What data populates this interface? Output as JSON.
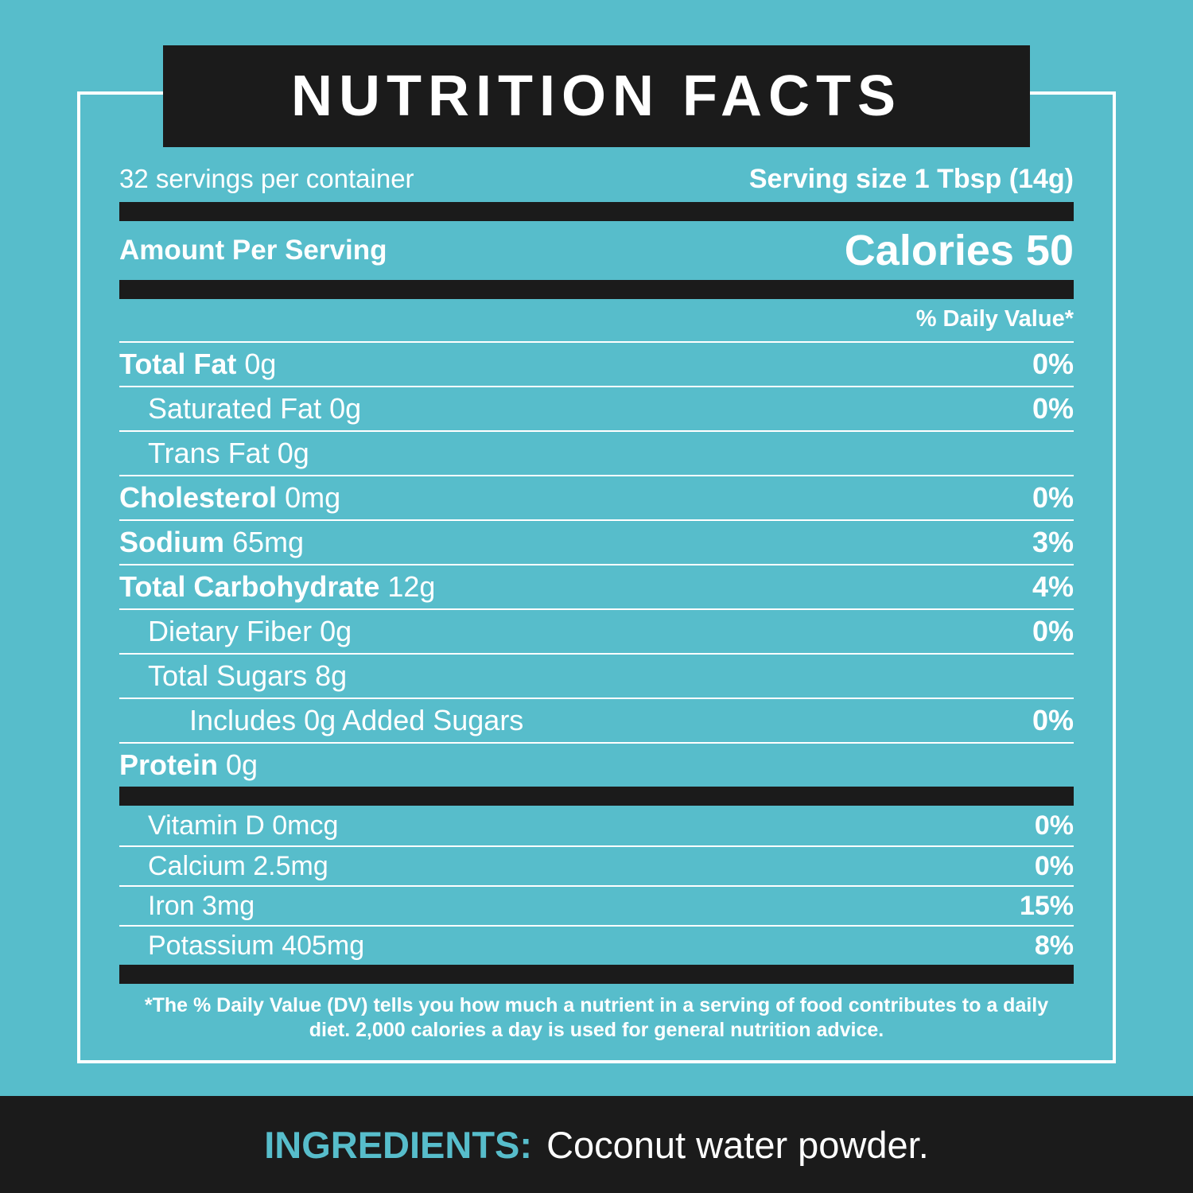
{
  "colors": {
    "background": "#57BDCB",
    "bar_black": "#1B1B1B",
    "text_white": "#FFFFFF",
    "accent_teal": "#57BDCB"
  },
  "label": {
    "title": "NUTRITION FACTS",
    "servings_per_container": "32 servings per container",
    "serving_size_label": "Serving size",
    "serving_size_value": "1 Tbsp (14g)",
    "amount_per_serving": "Amount Per Serving",
    "calories_label": "Calories",
    "calories_value": "50",
    "daily_value_header": "% Daily Value*",
    "rows": [
      {
        "name": "Total Fat",
        "amount": "0g",
        "dv": "0%"
      },
      {
        "name": "Saturated Fat",
        "amount": "0g",
        "dv": "0%"
      },
      {
        "name": "Trans Fat",
        "amount": "0g",
        "dv": ""
      },
      {
        "name": "Cholesterol",
        "amount": "0mg",
        "dv": "0%"
      },
      {
        "name": "Sodium",
        "amount": "65mg",
        "dv": "3%"
      },
      {
        "name": "Total Carbohydrate",
        "amount": "12g",
        "dv": "4%"
      },
      {
        "name": "Dietary Fiber",
        "amount": "0g",
        "dv": "0%"
      },
      {
        "name": "Total Sugars",
        "amount": "8g",
        "dv": ""
      },
      {
        "name": "Includes 0g Added Sugars",
        "amount": "",
        "dv": "0%"
      },
      {
        "name": "Protein",
        "amount": "0g",
        "dv": ""
      }
    ],
    "micronutrients": [
      {
        "name": "Vitamin D",
        "amount": "0mcg",
        "dv": "0%"
      },
      {
        "name": "Calcium",
        "amount": "2.5mg",
        "dv": "0%"
      },
      {
        "name": "Iron",
        "amount": "3mg",
        "dv": "15%"
      },
      {
        "name": "Potassium",
        "amount": "405mg",
        "dv": "8%"
      }
    ],
    "footnote": "*The % Daily Value (DV) tells you how much a nutrient in a serving of food contributes to a daily diet. 2,000 calories a day is used for general nutrition advice.",
    "ingredients": {
      "label": "INGREDIENTS:",
      "value": "Coconut water powder."
    }
  }
}
